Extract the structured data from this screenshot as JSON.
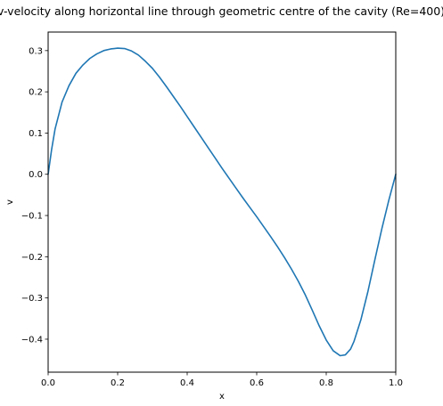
{
  "chart_data": {
    "type": "line",
    "title": "v-velocity along horizontal line through geometric centre of the cavity (Re=400)",
    "xlabel": "x",
    "ylabel": "v",
    "xlim": [
      0.0,
      1.0
    ],
    "ylim": [
      -0.48,
      0.345
    ],
    "xticks": [
      0.0,
      0.2,
      0.4,
      0.6,
      0.8,
      1.0
    ],
    "xtick_labels": [
      "0.0",
      "0.2",
      "0.4",
      "0.6",
      "0.8",
      "1.0"
    ],
    "yticks": [
      0.3,
      0.2,
      0.1,
      0.0,
      -0.1,
      -0.2,
      -0.3,
      -0.4
    ],
    "ytick_labels": [
      "0.3",
      "0.2",
      "0.1",
      "0.0",
      "−0.1",
      "−0.2",
      "−0.3",
      "−0.4"
    ],
    "grid": false,
    "line_color": "#1f77b4",
    "series": [
      {
        "x": [
          0.0,
          0.01,
          0.02,
          0.04,
          0.06,
          0.08,
          0.1,
          0.12,
          0.14,
          0.16,
          0.18,
          0.2,
          0.22,
          0.24,
          0.26,
          0.28,
          0.3,
          0.32,
          0.34,
          0.36,
          0.38,
          0.4,
          0.42,
          0.44,
          0.46,
          0.48,
          0.5,
          0.52,
          0.54,
          0.56,
          0.58,
          0.6,
          0.62,
          0.64,
          0.66,
          0.68,
          0.7,
          0.72,
          0.74,
          0.76,
          0.78,
          0.8,
          0.82,
          0.84,
          0.855,
          0.87,
          0.88,
          0.9,
          0.92,
          0.94,
          0.96,
          0.98,
          1.0
        ],
        "y": [
          0.0,
          0.06,
          0.11,
          0.175,
          0.215,
          0.245,
          0.265,
          0.281,
          0.292,
          0.3,
          0.304,
          0.306,
          0.305,
          0.299,
          0.289,
          0.274,
          0.257,
          0.236,
          0.213,
          0.189,
          0.165,
          0.14,
          0.115,
          0.09,
          0.065,
          0.04,
          0.015,
          -0.009,
          -0.033,
          -0.057,
          -0.08,
          -0.103,
          -0.127,
          -0.151,
          -0.176,
          -0.202,
          -0.23,
          -0.26,
          -0.293,
          -0.33,
          -0.368,
          -0.402,
          -0.428,
          -0.44,
          -0.438,
          -0.424,
          -0.405,
          -0.352,
          -0.284,
          -0.207,
          -0.132,
          -0.063,
          0.0
        ]
      }
    ]
  }
}
